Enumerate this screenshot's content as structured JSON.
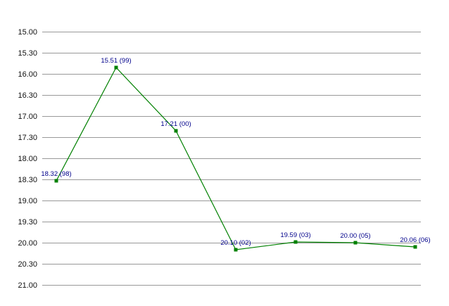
{
  "chart_data": {
    "type": "line",
    "title": "",
    "xlabel": "",
    "ylabel": "",
    "y_axis_inverted": true,
    "y_format": "minutes.seconds",
    "ylim": [
      "15.00",
      "21.00"
    ],
    "y_ticks": [
      "15.00",
      "15.30",
      "16.00",
      "16.30",
      "17.00",
      "17.30",
      "18.00",
      "18.30",
      "19.00",
      "19.30",
      "20.00",
      "20.30",
      "21.00"
    ],
    "grid": "horizontal",
    "line_color": "#008000",
    "marker_color": "#008000",
    "label_color": "#00008b",
    "gridline_color": "#999999",
    "points": [
      {
        "value": "18.32",
        "label": "18.32 (98)"
      },
      {
        "value": "15.51",
        "label": "15.51 (99)"
      },
      {
        "value": "17.21",
        "label": "17.21 (00)"
      },
      {
        "value": "20.10",
        "label": "20.10 (02)"
      },
      {
        "value": "19.59",
        "label": "19.59 (03)"
      },
      {
        "value": "20.00",
        "label": "20.00 (05)"
      },
      {
        "value": "20.06",
        "label": "20.06 (06)"
      }
    ]
  }
}
